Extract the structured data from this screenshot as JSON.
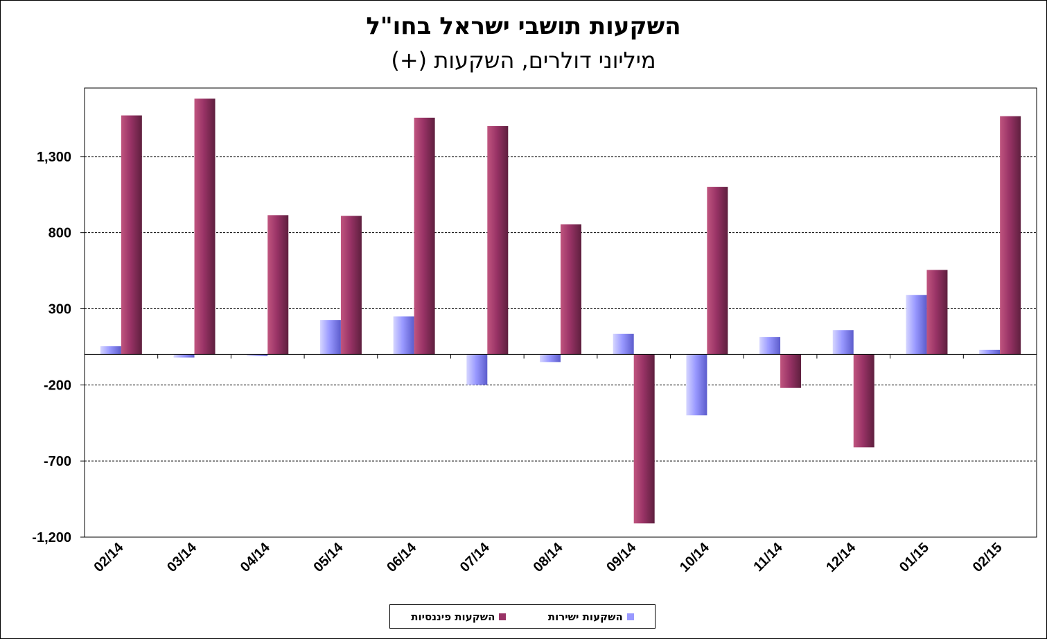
{
  "chart_data": {
    "type": "bar",
    "title": "השקעות תושבי ישראל בחו\"ל",
    "subtitle": "מיליוני דולרים, השקעות (+)",
    "categories": [
      "02/14",
      "03/14",
      "04/14",
      "05/14",
      "06/14",
      "07/14",
      "08/14",
      "09/14",
      "10/14",
      "11/14",
      "12/14",
      "01/15",
      "02/15"
    ],
    "series": [
      {
        "name": "השקעות ישירות",
        "color": "#9999ff",
        "values": [
          55,
          -20,
          -10,
          225,
          250,
          -200,
          -50,
          135,
          -400,
          115,
          160,
          390,
          30
        ]
      },
      {
        "name": "השקעות פיננסיות",
        "color": "#993366",
        "values": [
          1570,
          1680,
          915,
          910,
          1555,
          1500,
          855,
          -1110,
          1100,
          -220,
          -610,
          555,
          1565
        ]
      }
    ],
    "y_ticks": [
      "1,300",
      "800",
      "300",
      "-200",
      "-700",
      "-1,200"
    ],
    "y_tick_values": [
      1300,
      800,
      300,
      -200,
      -700,
      -1200
    ],
    "ylim": [
      -1200,
      1750
    ],
    "grid": true,
    "legend_position": "bottom"
  }
}
